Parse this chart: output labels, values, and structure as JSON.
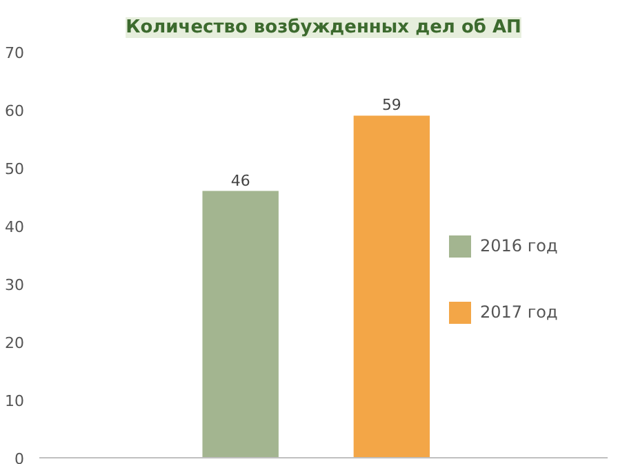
{
  "chart_data": {
    "type": "bar",
    "title": "Количество возбужденных дел об АП",
    "categories": [
      null
    ],
    "series": [
      {
        "name": "2016 год",
        "color": "#a3b590",
        "values": [
          46
        ]
      },
      {
        "name": "2017 год",
        "color": "#f3a647",
        "values": [
          59
        ]
      }
    ],
    "ylim": [
      0,
      70
    ],
    "yticks": [
      0,
      10,
      20,
      30,
      40,
      50,
      60,
      70
    ],
    "grid": false,
    "legend": "right",
    "data_labels": true
  }
}
